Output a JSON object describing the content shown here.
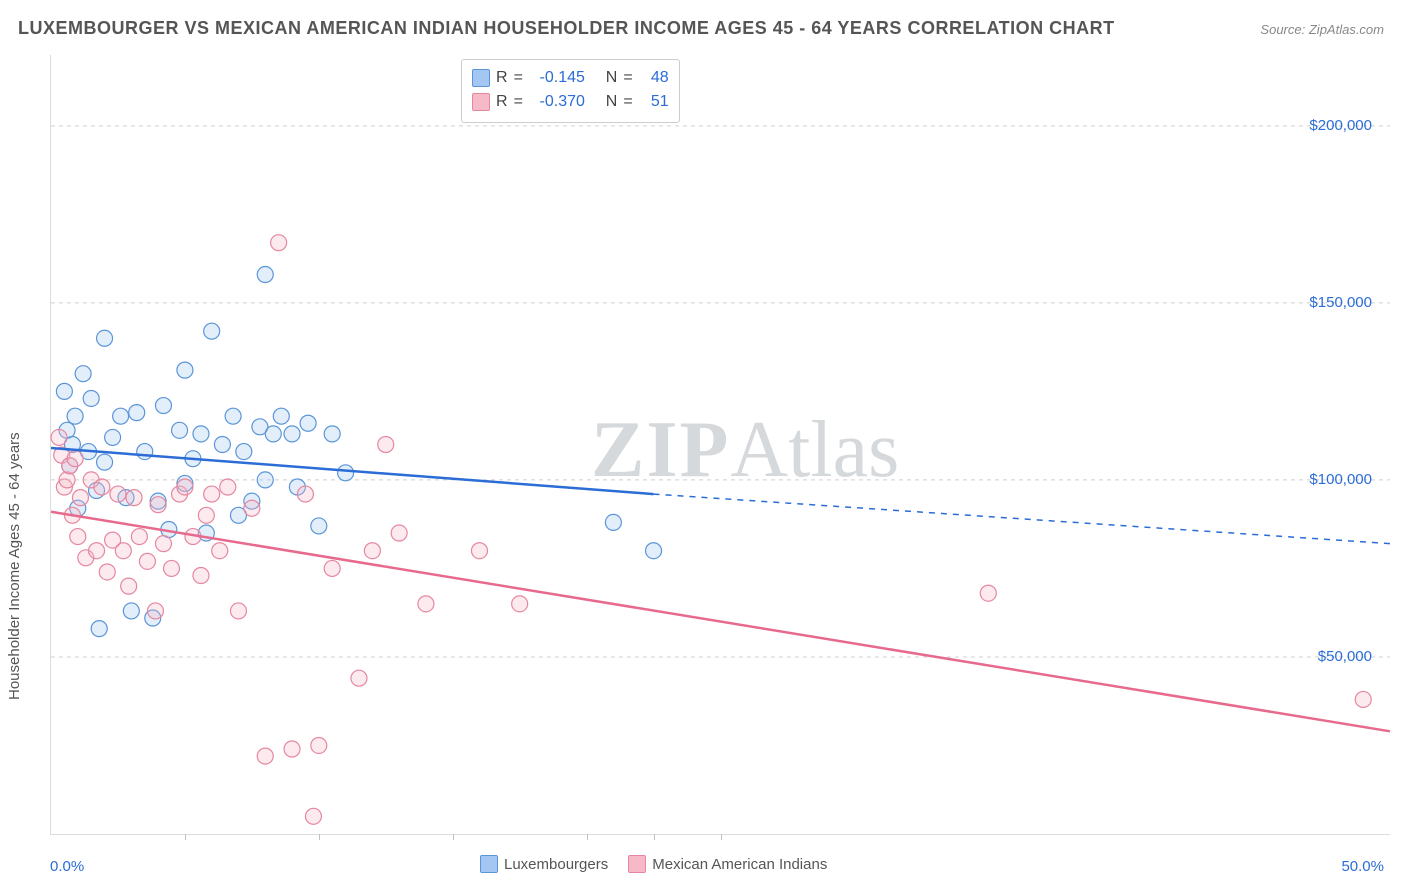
{
  "title": "LUXEMBOURGER VS MEXICAN AMERICAN INDIAN HOUSEHOLDER INCOME AGES 45 - 64 YEARS CORRELATION CHART",
  "source_label": "Source:",
  "source_value": "ZipAtlas.com",
  "ylabel": "Householder Income Ages 45 - 64 years",
  "watermark_zip": "ZIP",
  "watermark_atlas": "Atlas",
  "chart": {
    "type": "scatter",
    "xlim": [
      0,
      50
    ],
    "ylim": [
      0,
      220000
    ],
    "x_ticks": [
      0,
      50
    ],
    "x_tick_labels": [
      "0.0%",
      "50.0%"
    ],
    "y_ticks": [
      50000,
      100000,
      150000,
      200000
    ],
    "y_tick_labels": [
      "$50,000",
      "$100,000",
      "$150,000",
      "$200,000"
    ],
    "x_minor_ticks": [
      5,
      10,
      15,
      20,
      22.5,
      25
    ],
    "grid_color": "#d0d0d0",
    "background_color": "#ffffff",
    "axis_color": "#dcdcdc",
    "tick_text_color": "#2b6cd6",
    "label_text_color": "#555555",
    "title_fontsize": 18,
    "tick_fontsize": 15,
    "marker_radius": 8,
    "marker_stroke_width": 1.2,
    "marker_fill_opacity": 0.3,
    "line_width": 2.5,
    "series": [
      {
        "id": "luxembourgers",
        "label": "Luxembourgers",
        "color_fill": "#a3c7f2",
        "color_stroke": "#5b95d8",
        "line_color": "#2b6cd6",
        "correlation_R": "-0.145",
        "correlation_N": "48",
        "trend": {
          "x1": 0,
          "y1": 109000,
          "x2": 22.5,
          "y2": 96000,
          "x3": 50,
          "y3": 82000
        },
        "points": [
          [
            0.5,
            125000
          ],
          [
            0.6,
            114000
          ],
          [
            0.7,
            104000
          ],
          [
            0.8,
            110000
          ],
          [
            0.9,
            118000
          ],
          [
            1.0,
            92000
          ],
          [
            1.2,
            130000
          ],
          [
            1.4,
            108000
          ],
          [
            1.5,
            123000
          ],
          [
            1.7,
            97000
          ],
          [
            1.8,
            58000
          ],
          [
            2.0,
            105000
          ],
          [
            2.0,
            140000
          ],
          [
            2.3,
            112000
          ],
          [
            2.6,
            118000
          ],
          [
            2.8,
            95000
          ],
          [
            3.0,
            63000
          ],
          [
            3.2,
            119000
          ],
          [
            3.5,
            108000
          ],
          [
            3.8,
            61000
          ],
          [
            4.0,
            94000
          ],
          [
            4.2,
            121000
          ],
          [
            4.4,
            86000
          ],
          [
            4.8,
            114000
          ],
          [
            5.0,
            99000
          ],
          [
            5.0,
            131000
          ],
          [
            5.3,
            106000
          ],
          [
            5.6,
            113000
          ],
          [
            5.8,
            85000
          ],
          [
            6.0,
            142000
          ],
          [
            6.4,
            110000
          ],
          [
            6.8,
            118000
          ],
          [
            7.0,
            90000
          ],
          [
            7.2,
            108000
          ],
          [
            7.5,
            94000
          ],
          [
            7.8,
            115000
          ],
          [
            8.0,
            158000
          ],
          [
            8.0,
            100000
          ],
          [
            8.3,
            113000
          ],
          [
            8.6,
            118000
          ],
          [
            9.0,
            113000
          ],
          [
            9.2,
            98000
          ],
          [
            9.6,
            116000
          ],
          [
            10.0,
            87000
          ],
          [
            10.5,
            113000
          ],
          [
            11.0,
            102000
          ],
          [
            21.0,
            88000
          ],
          [
            22.5,
            80000
          ]
        ]
      },
      {
        "id": "mexican_am_indians",
        "label": "Mexican American Indians",
        "color_fill": "#f6b9c8",
        "color_stroke": "#e687a0",
        "line_color": "#e76a8c",
        "correlation_R": "-0.370",
        "correlation_N": "51",
        "trend": {
          "x1": 0,
          "y1": 91000,
          "x2": 50,
          "y2": 29000
        },
        "points": [
          [
            0.3,
            112000
          ],
          [
            0.4,
            107000
          ],
          [
            0.5,
            98000
          ],
          [
            0.6,
            100000
          ],
          [
            0.7,
            104000
          ],
          [
            0.8,
            90000
          ],
          [
            0.9,
            106000
          ],
          [
            1.0,
            84000
          ],
          [
            1.1,
            95000
          ],
          [
            1.3,
            78000
          ],
          [
            1.5,
            100000
          ],
          [
            1.7,
            80000
          ],
          [
            1.9,
            98000
          ],
          [
            2.1,
            74000
          ],
          [
            2.3,
            83000
          ],
          [
            2.5,
            96000
          ],
          [
            2.7,
            80000
          ],
          [
            2.9,
            70000
          ],
          [
            3.1,
            95000
          ],
          [
            3.3,
            84000
          ],
          [
            3.6,
            77000
          ],
          [
            3.9,
            63000
          ],
          [
            4.0,
            93000
          ],
          [
            4.2,
            82000
          ],
          [
            4.5,
            75000
          ],
          [
            4.8,
            96000
          ],
          [
            5.0,
            98000
          ],
          [
            5.3,
            84000
          ],
          [
            5.6,
            73000
          ],
          [
            5.8,
            90000
          ],
          [
            6.0,
            96000
          ],
          [
            6.3,
            80000
          ],
          [
            6.6,
            98000
          ],
          [
            7.0,
            63000
          ],
          [
            7.5,
            92000
          ],
          [
            8.0,
            22000
          ],
          [
            8.5,
            167000
          ],
          [
            9.0,
            24000
          ],
          [
            9.5,
            96000
          ],
          [
            9.8,
            5000
          ],
          [
            10.0,
            25000
          ],
          [
            10.5,
            75000
          ],
          [
            11.5,
            44000
          ],
          [
            12.0,
            80000
          ],
          [
            12.5,
            110000
          ],
          [
            13.0,
            85000
          ],
          [
            14.0,
            65000
          ],
          [
            16.0,
            80000
          ],
          [
            17.5,
            65000
          ],
          [
            35.0,
            68000
          ],
          [
            49.0,
            38000
          ]
        ]
      }
    ]
  },
  "legend_box": {
    "R_label": "R",
    "N_label": "N",
    "eq": "="
  }
}
